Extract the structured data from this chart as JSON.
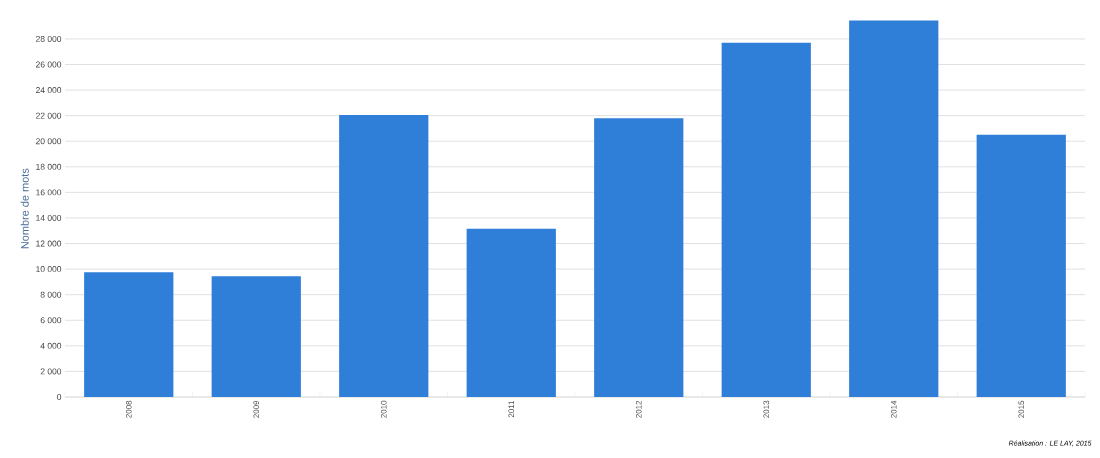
{
  "chart_data": {
    "type": "bar",
    "ylabel": "Nombre de mots",
    "categories": [
      "2008",
      "2009",
      "2010",
      "2011",
      "2012",
      "2013",
      "2014",
      "2015"
    ],
    "values": [
      9750,
      9450,
      22050,
      13150,
      21800,
      27700,
      29450,
      20500
    ],
    "color": "#2f7ed8",
    "ylim": [
      0,
      29450
    ],
    "yticks": [
      0,
      {
        "value": 2000,
        "label": "2 000"
      },
      {
        "value": 4000,
        "label": "4 000"
      },
      {
        "value": 6000,
        "label": "6 000"
      },
      {
        "value": 8000,
        "label": "8 000"
      },
      {
        "value": 10000,
        "label": "10 000"
      },
      {
        "value": 12000,
        "label": "12 000"
      },
      {
        "value": 14000,
        "label": "14 000"
      },
      {
        "value": 16000,
        "label": "16 000"
      },
      {
        "value": 18000,
        "label": "18 000"
      },
      {
        "value": 20000,
        "label": "20 000"
      },
      {
        "value": 22000,
        "label": "22 000"
      },
      {
        "value": 24000,
        "label": "24 000"
      },
      {
        "value": 26000,
        "label": "26 000"
      },
      {
        "value": 28000,
        "label": "28 000"
      }
    ],
    "grid": "y",
    "annotations": [
      "Réalisation : LE LAY, 2015"
    ]
  }
}
